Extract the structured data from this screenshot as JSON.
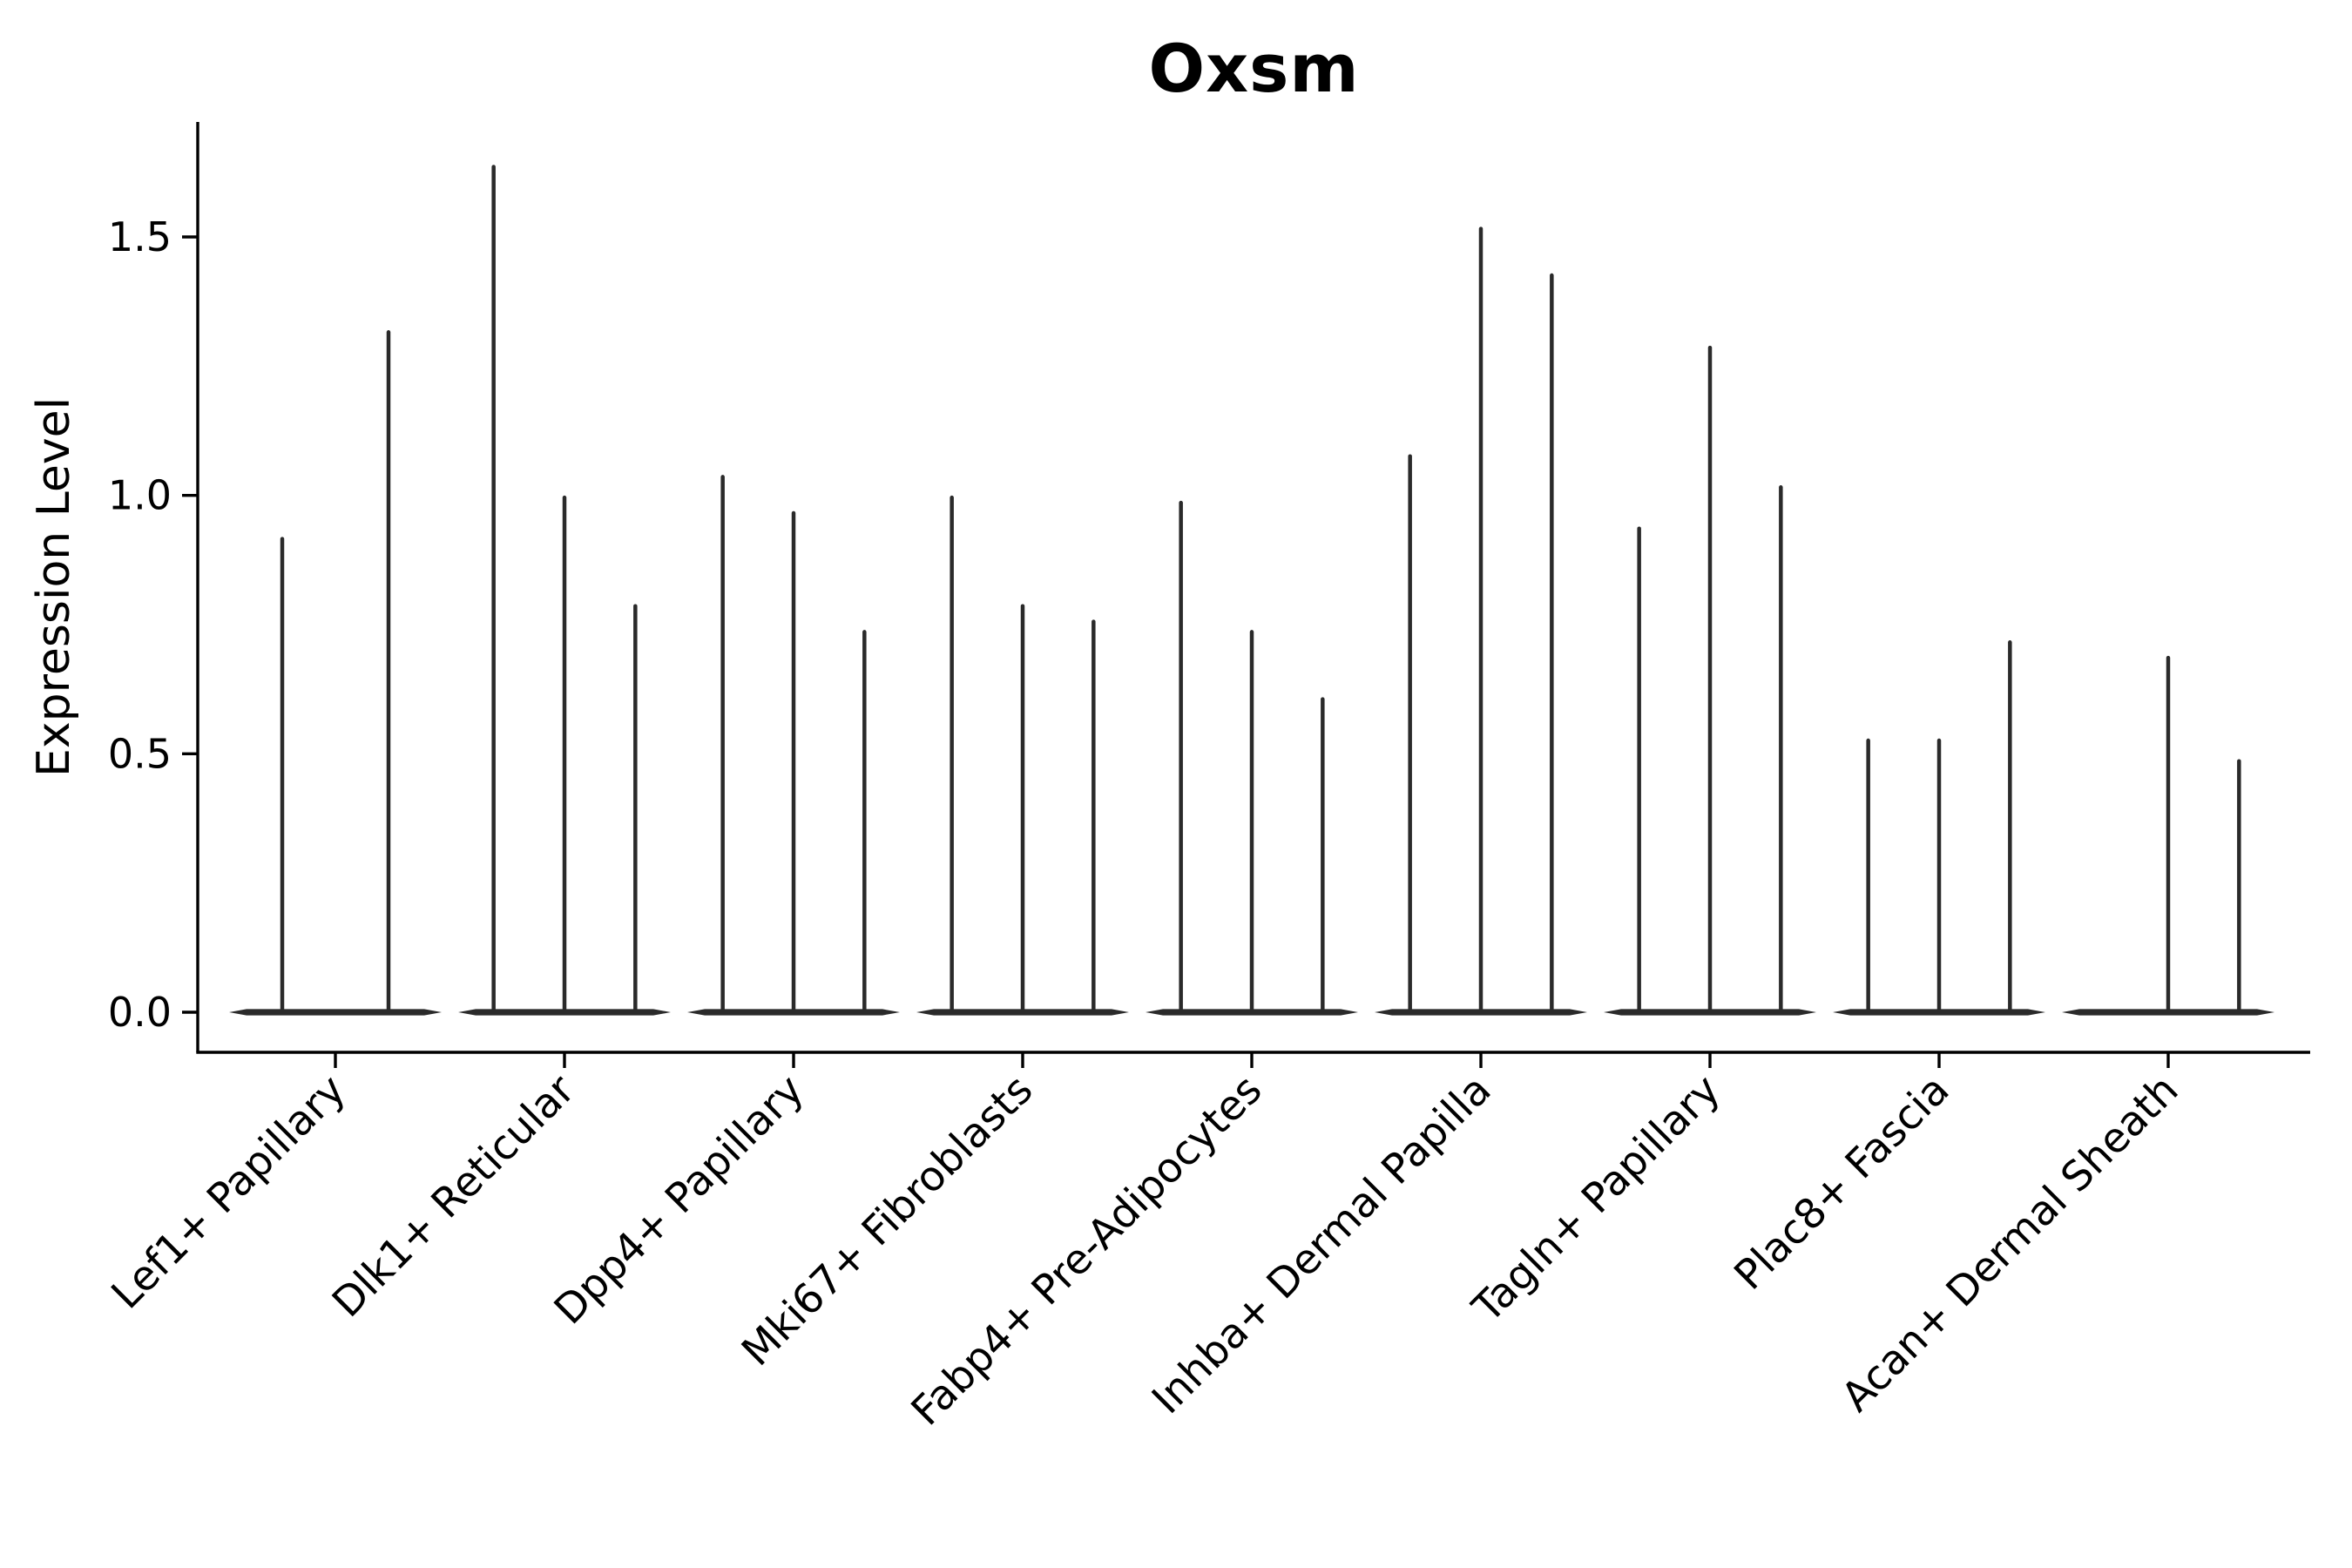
{
  "title": "Oxsm",
  "y_axis": {
    "label": "Expression Level",
    "tick_labels": [
      "0.0",
      "0.5",
      "1.0",
      "1.5"
    ]
  },
  "colors": {
    "violin": "#2a2a2a",
    "axis": "#000000",
    "text": "#000000",
    "background": "#ffffff"
  },
  "chart_data": {
    "type": "violin",
    "title": "Oxsm",
    "xlabel": "",
    "ylabel": "Expression Level",
    "ylim": [
      -0.08,
      1.73
    ],
    "yticks": [
      0.0,
      0.5,
      1.0,
      1.5
    ],
    "grid": false,
    "legend": false,
    "categories": [
      "Lef1+ Papillary",
      "Dlk1+ Reticular",
      "Dpp4+ Papillary",
      "Mki67+ Fibroblasts",
      "Fabp4+ Pre-Adipocytes",
      "Inhba+ Dermal Papilla",
      "Tagln+ Papillary",
      "Plac8+ Fascia",
      "Acan+ Dermal Sheath"
    ],
    "groups": [
      {
        "category": "Lef1+ Papillary",
        "violin_max_expression": [
          0.92,
          1.32
        ]
      },
      {
        "category": "Dlk1+ Reticular",
        "violin_max_expression": [
          1.64,
          1.0,
          0.79
        ]
      },
      {
        "category": "Dpp4+ Papillary",
        "violin_max_expression": [
          1.04,
          0.97,
          0.74
        ]
      },
      {
        "category": "Mki67+ Fibroblasts",
        "violin_max_expression": [
          1.0,
          0.79,
          0.76
        ]
      },
      {
        "category": "Fabp4+ Pre-Adipocytes",
        "violin_max_expression": [
          0.99,
          0.74,
          0.61
        ]
      },
      {
        "category": "Inhba+ Dermal Papilla",
        "violin_max_expression": [
          1.08,
          1.52,
          1.43
        ]
      },
      {
        "category": "Tagln+ Papillary",
        "violin_max_expression": [
          0.94,
          1.29,
          1.02
        ]
      },
      {
        "category": "Plac8+ Fascia",
        "violin_max_expression": [
          0.53,
          0.53,
          0.72
        ]
      },
      {
        "category": "Acan+ Dermal Sheath",
        "violin_max_expression": [
          null,
          0.69,
          0.49
        ]
      }
    ]
  }
}
